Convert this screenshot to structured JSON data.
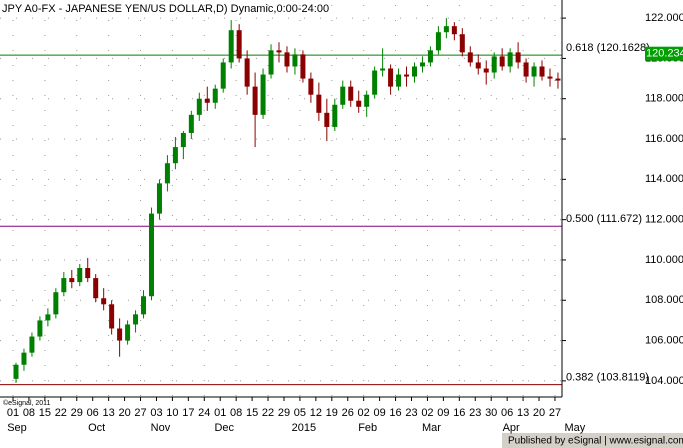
{
  "chart_data": {
    "type": "candlestick",
    "title": "JPY A0-FX - JAPANESE YEN/US DOLLAR,D) Dynamic,0:00-24:00",
    "categories": [
      "01",
      "08",
      "15",
      "22",
      "29",
      "06",
      "13",
      "20",
      "27",
      "03",
      "10",
      "17",
      "24",
      "01",
      "08",
      "15",
      "22",
      "29",
      "05",
      "12",
      "19",
      "26",
      "02",
      "09",
      "16",
      "23",
      "02",
      "09",
      "16",
      "23",
      "30",
      "06",
      "13",
      "20",
      "27"
    ],
    "month_labels": [
      "Sep",
      null,
      null,
      null,
      null,
      "Oct",
      null,
      null,
      null,
      "Nov",
      null,
      null,
      null,
      "Dec",
      null,
      null,
      null,
      null,
      "2015",
      null,
      null,
      null,
      "Feb",
      null,
      null,
      null,
      "Mar",
      null,
      null,
      null,
      null,
      "Apr",
      null,
      null,
      null
    ],
    "extra_month_label": "May",
    "open": [
      104.1,
      104.8,
      105.4,
      106.2,
      107.0,
      107.3,
      108.4,
      109.1,
      108.9,
      109.6,
      109.1,
      108.1,
      107.8,
      106.6,
      106.0,
      106.8,
      107.3,
      108.2,
      112.3,
      113.8,
      114.8,
      115.6,
      116.3,
      117.2,
      118.0,
      117.8,
      118.5,
      119.8,
      121.4,
      120.0,
      118.6,
      117.2,
      119.2,
      120.4,
      120.3,
      119.6,
      120.2,
      119.0,
      118.2,
      117.3,
      116.6,
      117.7,
      118.6,
      117.9,
      117.6,
      118.2,
      119.4,
      119.5,
      118.6,
      119.2,
      119.1,
      119.6,
      119.8,
      120.4,
      121.3,
      121.6,
      121.2,
      120.3,
      119.8,
      119.5,
      119.3,
      120.1,
      119.6,
      120.3,
      119.8,
      119.1,
      119.6,
      119.1,
      119.0,
      118.9
    ],
    "high": [
      104.9,
      105.6,
      106.4,
      107.2,
      107.6,
      108.6,
      109.4,
      109.5,
      109.8,
      110.1,
      109.3,
      108.6,
      108.0,
      107.1,
      107.0,
      107.5,
      108.5,
      112.6,
      114.0,
      115.2,
      116.1,
      116.4,
      117.4,
      118.3,
      118.6,
      118.7,
      120.0,
      121.9,
      121.7,
      120.4,
      119.3,
      119.5,
      120.7,
      120.8,
      120.6,
      120.5,
      120.4,
      119.3,
      118.8,
      118.0,
      118.0,
      118.9,
      118.9,
      118.4,
      118.4,
      119.6,
      120.5,
      119.7,
      119.5,
      119.6,
      119.8,
      120.1,
      120.6,
      121.6,
      122.0,
      121.8,
      121.5,
      120.6,
      120.2,
      119.9,
      120.3,
      120.5,
      120.5,
      120.8,
      120.0,
      119.8,
      119.9,
      119.5,
      119.3,
      120.4
    ],
    "low": [
      103.9,
      104.5,
      105.2,
      106.0,
      106.7,
      107.1,
      108.2,
      108.6,
      108.7,
      108.9,
      107.9,
      107.5,
      106.3,
      105.2,
      105.8,
      106.4,
      107.1,
      108.0,
      112.0,
      113.4,
      114.5,
      115.0,
      116.0,
      116.9,
      117.4,
      117.5,
      118.3,
      119.5,
      119.8,
      118.2,
      115.6,
      117.0,
      119.0,
      119.8,
      119.3,
      119.2,
      118.8,
      117.8,
      116.9,
      115.9,
      116.4,
      117.5,
      117.6,
      117.3,
      117.1,
      118.0,
      119.1,
      118.2,
      118.4,
      118.6,
      118.8,
      119.3,
      119.6,
      120.2,
      121.0,
      120.9,
      120.1,
      119.6,
      119.2,
      118.7,
      119.0,
      119.4,
      119.3,
      119.5,
      118.8,
      118.6,
      118.9,
      118.6,
      118.5,
      118.6
    ],
    "close": [
      104.8,
      105.4,
      106.2,
      107.0,
      107.3,
      108.4,
      109.1,
      108.9,
      109.6,
      109.1,
      108.1,
      107.8,
      106.6,
      106.0,
      106.8,
      107.3,
      108.2,
      112.3,
      113.8,
      114.8,
      115.6,
      116.3,
      117.2,
      118.0,
      117.8,
      118.5,
      119.8,
      121.4,
      120.0,
      118.6,
      117.2,
      119.2,
      120.4,
      120.3,
      119.6,
      120.2,
      119.0,
      118.2,
      117.3,
      116.6,
      117.7,
      118.6,
      117.9,
      117.6,
      118.2,
      119.4,
      119.5,
      118.6,
      119.2,
      119.1,
      119.6,
      119.8,
      120.4,
      121.3,
      121.6,
      121.2,
      120.3,
      119.8,
      119.5,
      119.3,
      120.1,
      119.6,
      120.3,
      119.8,
      119.1,
      119.6,
      119.1,
      119.0,
      118.9,
      120.2
    ],
    "up_color": "#008000",
    "down_color": "#8b0000",
    "last_price": 120.234,
    "last_price_color": "#00a000",
    "levels": [
      {
        "value": 120.1628,
        "label": "0.618 (120.1628)",
        "color": "#008000"
      },
      {
        "value": 111.672,
        "label": "0.500 (111.672)",
        "color": "#800080"
      },
      {
        "value": 103.8119,
        "label": "0.382 (103.8119)",
        "color": "#8b0000"
      }
    ],
    "ylim": [
      103.2,
      122.65
    ],
    "yticks": [
      {
        "value": 104,
        "label": "104.000"
      },
      {
        "value": 106,
        "label": "106.000"
      },
      {
        "value": 108,
        "label": "108.000"
      },
      {
        "value": 110,
        "label": "110.000"
      },
      {
        "value": 112,
        "label": "112.000"
      },
      {
        "value": 114,
        "label": "114.000"
      },
      {
        "value": 116,
        "label": "116.000"
      },
      {
        "value": 118,
        "label": "118.000"
      },
      {
        "value": 120,
        "label": "120.000"
      },
      {
        "value": 122,
        "label": "122.000"
      }
    ],
    "grid": true,
    "watermark": "©eSignal, 2011",
    "footer": "Published by eSignal | www.esignal.com"
  }
}
